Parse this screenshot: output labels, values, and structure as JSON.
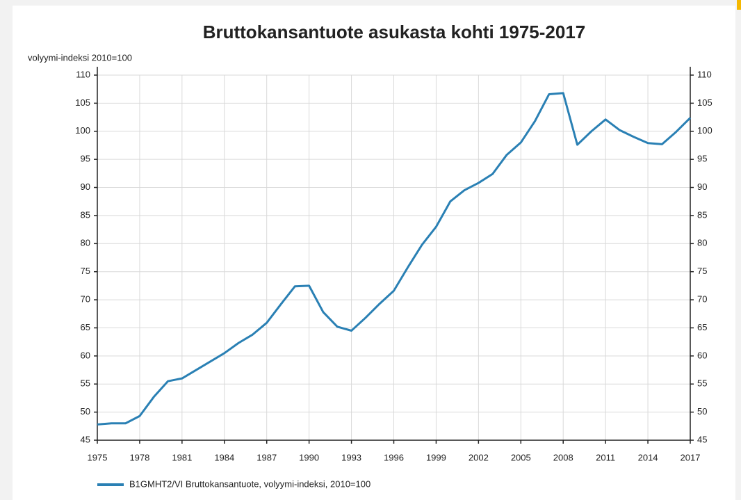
{
  "chart_data": {
    "type": "line",
    "title": "Bruttokansantuote asukasta kohti 1975-2017",
    "y_label": "volyymi-indeksi 2010=100",
    "x": [
      1975,
      1976,
      1977,
      1978,
      1979,
      1980,
      1981,
      1982,
      1983,
      1984,
      1985,
      1986,
      1987,
      1988,
      1989,
      1990,
      1991,
      1992,
      1993,
      1994,
      1995,
      1996,
      1997,
      1998,
      1999,
      2000,
      2001,
      2002,
      2003,
      2004,
      2005,
      2006,
      2007,
      2008,
      2009,
      2010,
      2011,
      2012,
      2013,
      2014,
      2015,
      2016,
      2017
    ],
    "series": [
      {
        "name": "B1GMHT2/VI Bruttokansantuote, volyymi-indeksi, 2010=100",
        "color": "#2a80b4",
        "values": [
          47.8,
          48.0,
          48.0,
          49.3,
          52.7,
          55.5,
          56.0,
          57.5,
          59.0,
          60.5,
          62.3,
          63.8,
          65.9,
          69.2,
          72.4,
          72.5,
          67.8,
          65.2,
          64.5,
          66.8,
          69.3,
          71.6,
          75.8,
          79.8,
          83.0,
          87.5,
          89.5,
          90.8,
          92.4,
          95.8,
          98.0,
          101.8,
          106.6,
          106.8,
          97.6,
          100.0,
          102.1,
          100.2,
          99.0,
          97.9,
          97.7,
          99.9,
          102.4
        ]
      }
    ],
    "xlim": [
      1975,
      2017
    ],
    "xticks": [
      1975,
      1978,
      1981,
      1984,
      1987,
      1990,
      1993,
      1996,
      1999,
      2002,
      2005,
      2008,
      2011,
      2014,
      2017
    ],
    "ylim": [
      45,
      110
    ],
    "yticks": [
      45,
      50,
      55,
      60,
      65,
      70,
      75,
      80,
      85,
      90,
      95,
      100,
      105,
      110
    ],
    "grid": true,
    "legend": "bottom-left"
  }
}
